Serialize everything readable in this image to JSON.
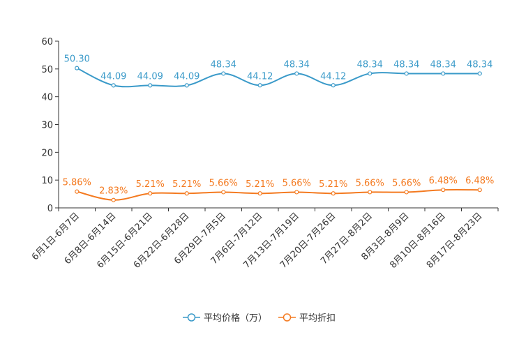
{
  "chart_data": {
    "type": "line",
    "title": "",
    "xlabel": "",
    "ylabel": "",
    "ylim": [
      0,
      60
    ],
    "yticks": [
      0,
      10,
      20,
      30,
      40,
      50,
      60
    ],
    "grid": false,
    "legend_position": "bottom",
    "categories": [
      "6月1日-6月7日",
      "6月8日-6月14日",
      "6月15日-6月21日",
      "6月22日-6月28日",
      "6月29日-7月5日",
      "7月6日-7月12日",
      "7月13日-7月19日",
      "7月20日-7月26日",
      "7月27日-8月2日",
      "8月3日-8月9日",
      "8月10日-8月16日",
      "8月17日-8月23日"
    ],
    "series": [
      {
        "name": "平均价格（万）",
        "color": "#3a9ac9",
        "values": [
          50.3,
          44.09,
          44.09,
          44.09,
          48.34,
          44.12,
          48.34,
          44.12,
          48.34,
          48.34,
          48.34,
          48.34
        ],
        "labels": [
          "50.30",
          "44.09",
          "44.09",
          "44.09",
          "48.34",
          "44.12",
          "48.34",
          "44.12",
          "48.34",
          "48.34",
          "48.34",
          "48.34"
        ]
      },
      {
        "name": "平均折扣",
        "color": "#f47a20",
        "values": [
          5.86,
          2.83,
          5.21,
          5.21,
          5.66,
          5.21,
          5.66,
          5.21,
          5.66,
          5.66,
          6.48,
          6.48
        ],
        "labels": [
          "5.86%",
          "2.83%",
          "5.21%",
          "5.21%",
          "5.66%",
          "5.21%",
          "5.66%",
          "5.21%",
          "5.66%",
          "5.66%",
          "6.48%",
          "6.48%"
        ]
      }
    ]
  }
}
